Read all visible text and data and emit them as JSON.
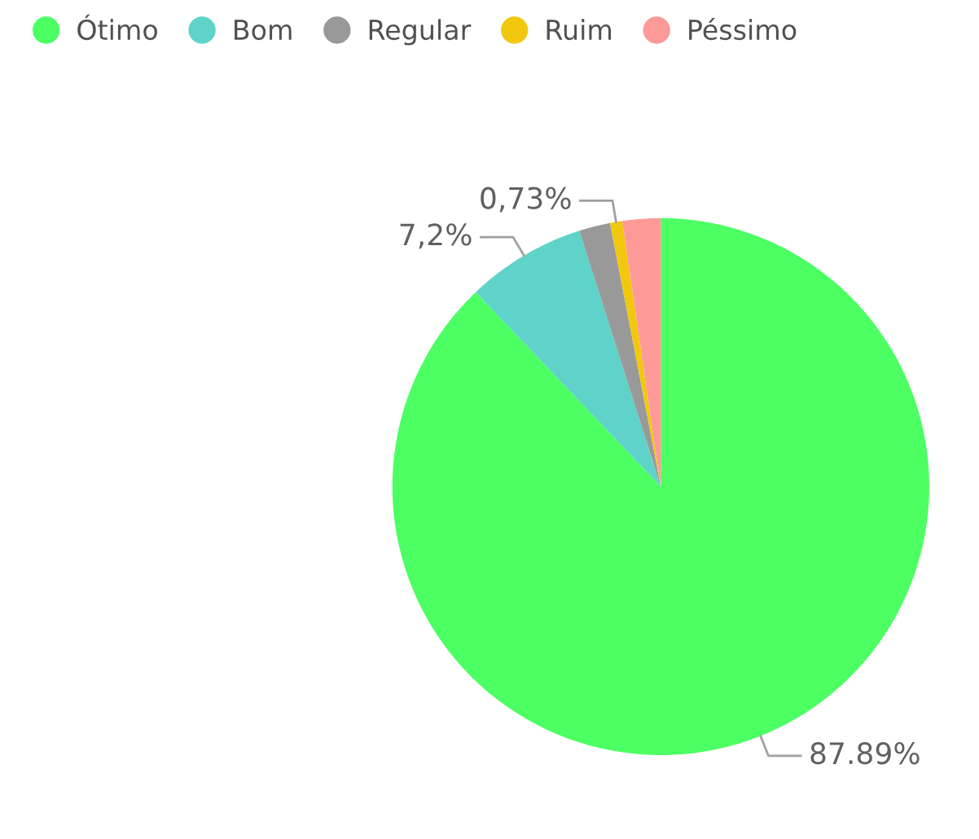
{
  "chart_data": {
    "type": "pie",
    "categories": [
      "Ótimo",
      "Bom",
      "Regular",
      "Ruim",
      "Péssimo"
    ],
    "values": [
      87.89,
      7.2,
      1.88,
      0.73,
      2.3
    ],
    "colors": [
      "#4cff63",
      "#5fd3c9",
      "#999999",
      "#f2c80f",
      "#fd9a98"
    ],
    "value_labels": [
      "87.89%",
      "7,2%",
      null,
      "0,73%",
      null
    ],
    "legend": "top left"
  }
}
